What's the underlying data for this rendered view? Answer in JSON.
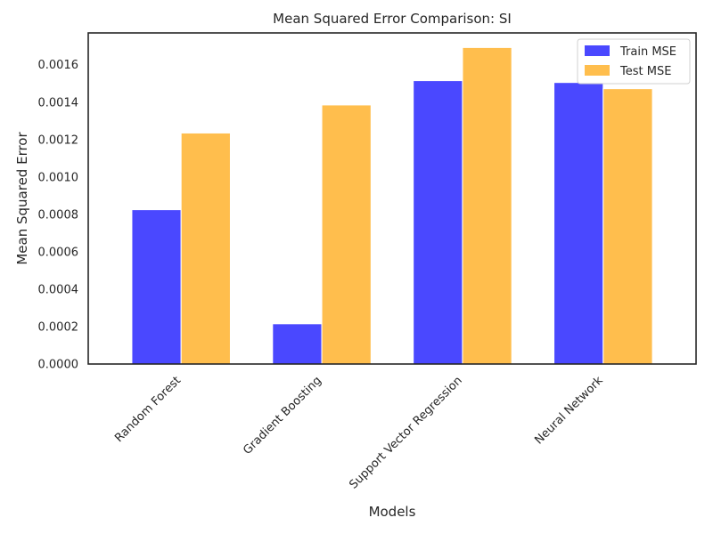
{
  "chart_data": {
    "type": "bar",
    "title": "Mean Squared Error Comparison: SI",
    "xlabel": "Models",
    "ylabel": "Mean Squared Error",
    "categories": [
      "Random Forest",
      "Gradient Boosting",
      "Support Vector Regression",
      "Neural Network"
    ],
    "series": [
      {
        "name": "Train MSE",
        "values": [
          0.000825,
          0.000215,
          0.001515,
          0.001505
        ],
        "color": "#4a48ff"
      },
      {
        "name": "Test MSE",
        "values": [
          0.001235,
          0.001385,
          0.001692,
          0.001472
        ],
        "color": "#ffbe4d"
      }
    ],
    "ylim": [
      0,
      0.00177
    ],
    "yticks": [
      "0.0000",
      "0.0002",
      "0.0004",
      "0.0006",
      "0.0008",
      "0.0010",
      "0.0012",
      "0.0014",
      "0.0016"
    ],
    "ytick_values": [
      0,
      0.0002,
      0.0004,
      0.0006,
      0.0008,
      0.001,
      0.0012,
      0.0014,
      0.0016
    ],
    "grid": false,
    "legend_position": "top-right"
  }
}
